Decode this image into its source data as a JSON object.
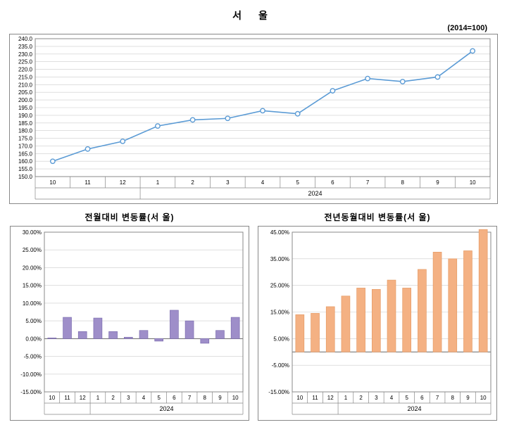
{
  "main_title": "서  울",
  "base_label": "(2014=100)",
  "line_chart": {
    "type": "line",
    "x_labels": [
      "10",
      "11",
      "12",
      "1",
      "2",
      "3",
      "4",
      "5",
      "6",
      "7",
      "8",
      "9",
      "10"
    ],
    "x_year": "2024",
    "values": [
      160.0,
      168.0,
      173.0,
      183.0,
      187.0,
      188.0,
      193.0,
      191.0,
      206.0,
      214.0,
      212.0,
      215.0,
      232.0
    ],
    "ymin": 150.0,
    "ymax": 240.0,
    "ytick_step": 5.0,
    "line_color": "#5b9bd5",
    "marker_fill": "#ffffff",
    "marker_stroke": "#5b9bd5",
    "grid_color": "#cccccc",
    "background": "#ffffff"
  },
  "mom": {
    "title": "전월대비 변동률(서  울)",
    "type": "bar",
    "x_labels": [
      "10",
      "11",
      "12",
      "1",
      "2",
      "3",
      "4",
      "5",
      "6",
      "7",
      "8",
      "9",
      "10"
    ],
    "x_year": "2024",
    "values": [
      0.2,
      6.0,
      2.0,
      5.8,
      2.0,
      0.4,
      2.3,
      -0.7,
      8.0,
      5.0,
      -1.3,
      2.3,
      6.0
    ],
    "ymin": -15.0,
    "ymax": 30.0,
    "ytick_step": 5.0,
    "bar_color": "#9e8ec9",
    "bar_border": "#7d6eb0",
    "grid_color": "#cccccc",
    "y_format": "percent2"
  },
  "yoy": {
    "title": "전년동월대비 변동률(서  울)",
    "type": "bar",
    "x_labels": [
      "10",
      "11",
      "12",
      "1",
      "2",
      "3",
      "4",
      "5",
      "6",
      "7",
      "8",
      "9",
      "10"
    ],
    "x_year": "2024",
    "values": [
      14.0,
      14.5,
      17.0,
      21.0,
      24.0,
      23.5,
      27.0,
      24.0,
      31.0,
      37.5,
      35.0,
      38.0,
      46.0
    ],
    "ymin": -15.0,
    "ymax": 45.0,
    "ytick_step": 10.0,
    "bar_color": "#f4b183",
    "bar_border": "#e59b66",
    "grid_color": "#cccccc",
    "y_format": "percent2"
  }
}
